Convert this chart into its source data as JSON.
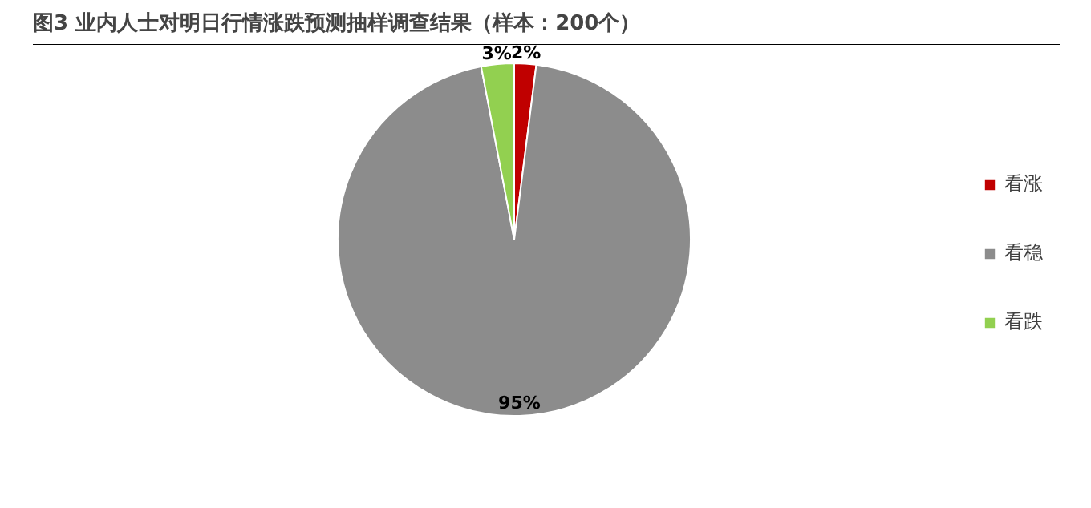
{
  "chart_data": {
    "type": "pie",
    "title": "图3 业内人士对明日行情涨跌预测抽样调查结果（样本：200个）",
    "categories": [
      "看涨",
      "看稳",
      "看跌"
    ],
    "values": [
      2,
      95,
      3
    ],
    "colors": [
      "#c00000",
      "#8c8c8c",
      "#92d050"
    ],
    "value_labels": [
      "2%",
      "95%",
      "3%"
    ],
    "legend": "right"
  }
}
